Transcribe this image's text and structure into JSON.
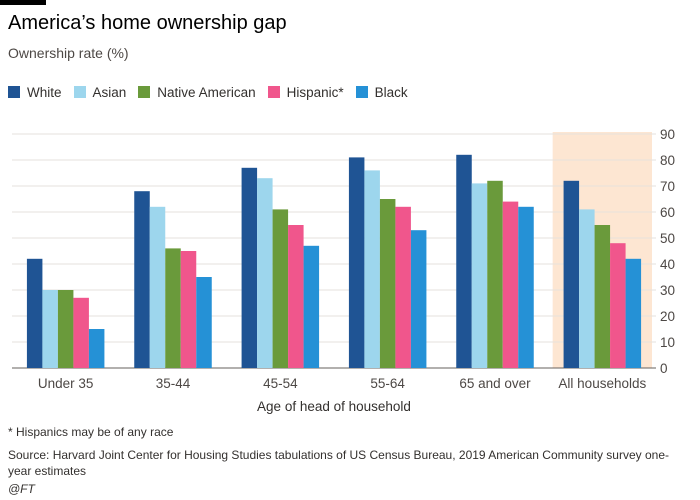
{
  "title": "America’s home ownership gap",
  "subtitle": "Ownership rate (%)",
  "footnote": "* Hispanics may be of any race",
  "source": "Source: Harvard Joint Center for Housing Studies tabulations of US Census Bureau, 2019 American Community survey one-year estimates",
  "credit": "@FT",
  "chart_data": {
    "type": "bar",
    "title": "America’s home ownership gap",
    "ylabel": "Ownership rate (%)",
    "xlabel": "Age of head of household",
    "categories": [
      "Under 35",
      "35-44",
      "45-54",
      "55-64",
      "65 and over",
      "All households"
    ],
    "highlight_category": "All households",
    "highlight_color": "#fde6d2",
    "ylim": [
      0,
      90
    ],
    "yticks": [
      0,
      10,
      20,
      30,
      40,
      50,
      60,
      70,
      80,
      90
    ],
    "y_axis_side": "right",
    "grid": true,
    "legend_position": "top-left",
    "series": [
      {
        "name": "White",
        "color": "#1f5494",
        "values": [
          42,
          68,
          77,
          81,
          82,
          72
        ]
      },
      {
        "name": "Asian",
        "color": "#9dd6ed",
        "values": [
          30,
          62,
          73,
          76,
          71,
          61
        ]
      },
      {
        "name": "Native American",
        "color": "#6a9a3b",
        "values": [
          30,
          46,
          61,
          65,
          72,
          55
        ]
      },
      {
        "name": "Hispanic*",
        "color": "#f0568c",
        "values": [
          27,
          45,
          55,
          62,
          64,
          48
        ]
      },
      {
        "name": "Black",
        "color": "#2591d6",
        "values": [
          15,
          35,
          47,
          53,
          62,
          42
        ]
      }
    ]
  }
}
